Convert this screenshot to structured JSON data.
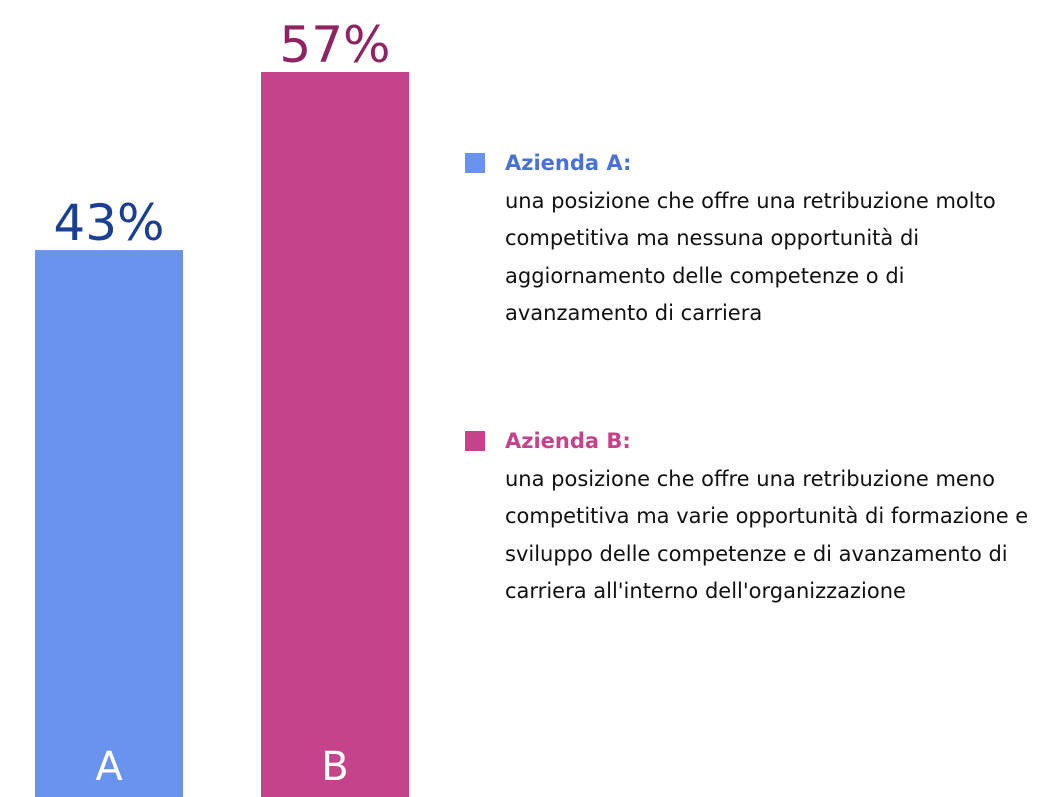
{
  "chart_data": {
    "type": "bar",
    "categories": [
      "A",
      "B"
    ],
    "values": [
      43,
      57
    ],
    "value_labels": [
      "43%",
      "57%"
    ],
    "colors": [
      "#6a93ee",
      "#c4438a"
    ],
    "value_label_colors": [
      "#1c3f94",
      "#8e2461"
    ],
    "legend": [
      {
        "name": "Azienda A:",
        "text": "una posizione che offre una retribuzione molto competitiva ma nessuna opportunità di aggiornamento delle competenze o di avanzamento di carriera"
      },
      {
        "name": "Azienda B:",
        "text": "una posizione che offre una retribuzione meno competitiva ma varie opportunità di formazione e sviluppo delle competenze e di avanzamento di carriera all'interno dell'organizzazione"
      }
    ]
  }
}
